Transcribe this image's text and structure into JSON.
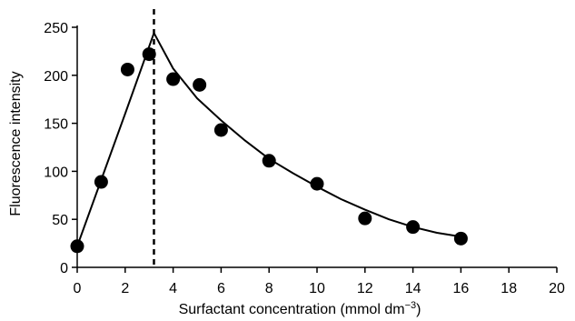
{
  "chart_data": {
    "type": "scatter",
    "xlabel": "Surfactant concentration (mmol dm",
    "xlabel_exponent": "−3",
    "xlabel_suffix": ")",
    "ylabel": "Fluorescence intensity",
    "xlim": [
      0,
      20
    ],
    "ylim": [
      0,
      250
    ],
    "x_ticks": [
      0,
      2,
      4,
      6,
      8,
      10,
      12,
      14,
      16,
      18,
      20
    ],
    "y_ticks": [
      0,
      50,
      100,
      150,
      200,
      250
    ],
    "grid": false,
    "legend": "none",
    "points": [
      {
        "x": 0.0,
        "y": 22
      },
      {
        "x": 1.0,
        "y": 89
      },
      {
        "x": 2.1,
        "y": 206
      },
      {
        "x": 3.0,
        "y": 222
      },
      {
        "x": 4.0,
        "y": 196
      },
      {
        "x": 5.1,
        "y": 190
      },
      {
        "x": 6.0,
        "y": 143
      },
      {
        "x": 8.0,
        "y": 111
      },
      {
        "x": 10.0,
        "y": 87
      },
      {
        "x": 12.0,
        "y": 51
      },
      {
        "x": 14.0,
        "y": 42
      },
      {
        "x": 16.0,
        "y": 30
      }
    ],
    "fit_curve": [
      {
        "x": 0.0,
        "y": 22
      },
      {
        "x": 1.0,
        "y": 91
      },
      {
        "x": 2.0,
        "y": 160
      },
      {
        "x": 3.2,
        "y": 244
      },
      {
        "x": 4.0,
        "y": 207
      },
      {
        "x": 5.0,
        "y": 176
      },
      {
        "x": 6.0,
        "y": 153
      },
      {
        "x": 7.0,
        "y": 132
      },
      {
        "x": 8.0,
        "y": 113
      },
      {
        "x": 9.0,
        "y": 98
      },
      {
        "x": 10.0,
        "y": 84
      },
      {
        "x": 11.0,
        "y": 71
      },
      {
        "x": 12.0,
        "y": 60
      },
      {
        "x": 13.0,
        "y": 50
      },
      {
        "x": 14.0,
        "y": 42
      },
      {
        "x": 15.0,
        "y": 36
      },
      {
        "x": 16.0,
        "y": 32
      }
    ],
    "cmc_line_x": 3.2
  }
}
